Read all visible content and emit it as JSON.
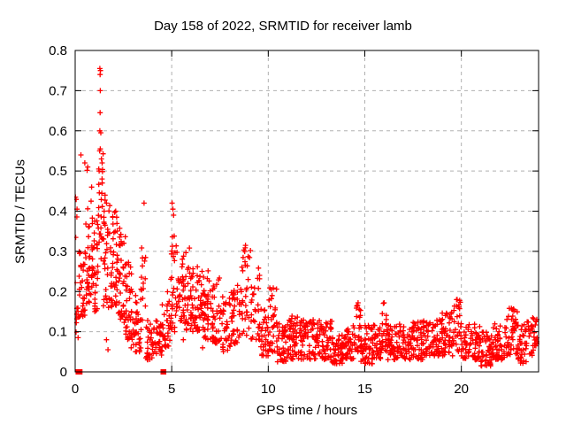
{
  "chart_data": {
    "type": "scatter",
    "title": "Day 158 of 2022, SRMTID for receiver lamb",
    "xlabel": "GPS time / hours",
    "ylabel": "SRMTID / TECUs",
    "xlim": [
      0,
      24
    ],
    "ylim": [
      0,
      0.8
    ],
    "grid": true,
    "legend": null,
    "marker": "plus",
    "colors": {
      "marker": "#ff0000",
      "grid": "#b0b0b0",
      "frame": "#000000",
      "text": "#000000",
      "background": "#ffffff"
    },
    "xticks": [
      {
        "v": 0,
        "label": "0"
      },
      {
        "v": 5,
        "label": "5"
      },
      {
        "v": 10,
        "label": "10"
      },
      {
        "v": 15,
        "label": "15"
      },
      {
        "v": 20,
        "label": "20"
      }
    ],
    "yticks": [
      {
        "v": 0.0,
        "label": "0"
      },
      {
        "v": 0.1,
        "label": "0.1"
      },
      {
        "v": 0.2,
        "label": "0.2"
      },
      {
        "v": 0.3,
        "label": "0.3"
      },
      {
        "v": 0.4,
        "label": "0.4"
      },
      {
        "v": 0.5,
        "label": "0.5"
      },
      {
        "v": 0.6,
        "label": "0.6"
      },
      {
        "v": 0.7,
        "label": "0.7"
      },
      {
        "v": 0.8,
        "label": "0.8"
      }
    ],
    "zero_value_runs_hours": [
      [
        0.02,
        0.38
      ],
      [
        4.42,
        4.72
      ]
    ],
    "outlier_points": [
      [
        0.02,
        0.435
      ],
      [
        0.3,
        0.54
      ],
      [
        0.5,
        0.52
      ],
      [
        0.65,
        0.51
      ],
      [
        0.85,
        0.46
      ],
      [
        1.28,
        0.755
      ],
      [
        1.31,
        0.75
      ],
      [
        1.29,
        0.74
      ],
      [
        1.3,
        0.7
      ],
      [
        1.29,
        0.645
      ],
      [
        1.28,
        0.6
      ],
      [
        1.33,
        0.595
      ],
      [
        1.3,
        0.555
      ],
      [
        1.27,
        0.55
      ],
      [
        1.36,
        0.53
      ],
      [
        1.24,
        0.5
      ],
      [
        1.4,
        0.47
      ],
      [
        1.55,
        0.44
      ],
      [
        1.62,
        0.42
      ],
      [
        1.5,
        0.4
      ],
      [
        2.1,
        0.4
      ],
      [
        2.15,
        0.385
      ],
      [
        3.57,
        0.42
      ],
      [
        5.02,
        0.42
      ],
      [
        5.06,
        0.405
      ],
      [
        5.1,
        0.39
      ],
      [
        8.82,
        0.315
      ],
      [
        10.15,
        0.205
      ],
      [
        10.2,
        0.19
      ],
      [
        14.65,
        0.172
      ],
      [
        16.0,
        0.172
      ],
      [
        19.78,
        0.18
      ],
      [
        22.72,
        0.155
      ],
      [
        0.15,
        0.085
      ],
      [
        1.62,
        0.08
      ],
      [
        1.7,
        0.055
      ],
      [
        2.9,
        0.06
      ],
      [
        3.8,
        0.04
      ],
      [
        5.6,
        0.08
      ],
      [
        6.6,
        0.06
      ]
    ],
    "density_bands_x0_x1_ymin_ymax_count": [
      [
        0.0,
        0.1,
        0.08,
        0.44,
        10
      ],
      [
        0.1,
        0.5,
        0.13,
        0.3,
        30
      ],
      [
        0.5,
        0.9,
        0.14,
        0.34,
        35
      ],
      [
        0.5,
        0.9,
        0.36,
        0.52,
        8
      ],
      [
        0.9,
        1.2,
        0.15,
        0.38,
        30
      ],
      [
        1.2,
        1.45,
        0.28,
        0.55,
        22
      ],
      [
        1.45,
        1.8,
        0.16,
        0.44,
        30
      ],
      [
        1.8,
        2.2,
        0.16,
        0.4,
        40
      ],
      [
        2.2,
        2.6,
        0.12,
        0.36,
        40
      ],
      [
        2.6,
        3.0,
        0.08,
        0.28,
        40
      ],
      [
        3.0,
        3.4,
        0.05,
        0.2,
        35
      ],
      [
        3.4,
        3.65,
        0.08,
        0.32,
        15
      ],
      [
        3.65,
        4.1,
        0.03,
        0.13,
        30
      ],
      [
        4.1,
        4.5,
        0.04,
        0.13,
        28
      ],
      [
        4.5,
        4.9,
        0.06,
        0.2,
        32
      ],
      [
        4.9,
        5.3,
        0.1,
        0.36,
        35
      ],
      [
        5.3,
        5.7,
        0.12,
        0.3,
        35
      ],
      [
        5.7,
        6.1,
        0.1,
        0.31,
        35
      ],
      [
        6.1,
        6.6,
        0.1,
        0.28,
        40
      ],
      [
        6.6,
        7.1,
        0.08,
        0.26,
        40
      ],
      [
        7.1,
        7.6,
        0.07,
        0.24,
        38
      ],
      [
        7.6,
        8.1,
        0.05,
        0.2,
        35
      ],
      [
        8.1,
        8.6,
        0.07,
        0.22,
        35
      ],
      [
        8.6,
        9.1,
        0.09,
        0.31,
        32
      ],
      [
        9.1,
        9.6,
        0.07,
        0.26,
        32
      ],
      [
        9.6,
        10.0,
        0.04,
        0.16,
        30
      ],
      [
        10.0,
        10.45,
        0.05,
        0.21,
        30
      ],
      [
        10.45,
        11.0,
        0.025,
        0.12,
        45
      ],
      [
        11.0,
        11.7,
        0.03,
        0.145,
        55
      ],
      [
        11.7,
        12.5,
        0.03,
        0.13,
        60
      ],
      [
        12.5,
        13.3,
        0.03,
        0.13,
        60
      ],
      [
        13.3,
        13.85,
        0.02,
        0.1,
        42
      ],
      [
        13.85,
        14.45,
        0.03,
        0.12,
        45
      ],
      [
        14.45,
        14.8,
        0.05,
        0.175,
        26
      ],
      [
        14.8,
        15.45,
        0.02,
        0.12,
        48
      ],
      [
        15.45,
        15.9,
        0.03,
        0.12,
        34
      ],
      [
        15.9,
        16.2,
        0.05,
        0.175,
        22
      ],
      [
        16.2,
        17.0,
        0.03,
        0.12,
        60
      ],
      [
        17.0,
        18.0,
        0.03,
        0.125,
        75
      ],
      [
        18.0,
        19.0,
        0.04,
        0.13,
        75
      ],
      [
        19.0,
        19.6,
        0.04,
        0.15,
        45
      ],
      [
        19.6,
        20.0,
        0.05,
        0.18,
        30
      ],
      [
        20.0,
        21.0,
        0.03,
        0.12,
        75
      ],
      [
        21.0,
        21.6,
        0.015,
        0.1,
        45
      ],
      [
        21.6,
        22.3,
        0.03,
        0.12,
        52
      ],
      [
        22.3,
        22.9,
        0.04,
        0.16,
        45
      ],
      [
        22.9,
        23.4,
        0.02,
        0.12,
        40
      ],
      [
        23.4,
        23.95,
        0.04,
        0.135,
        35
      ]
    ]
  }
}
